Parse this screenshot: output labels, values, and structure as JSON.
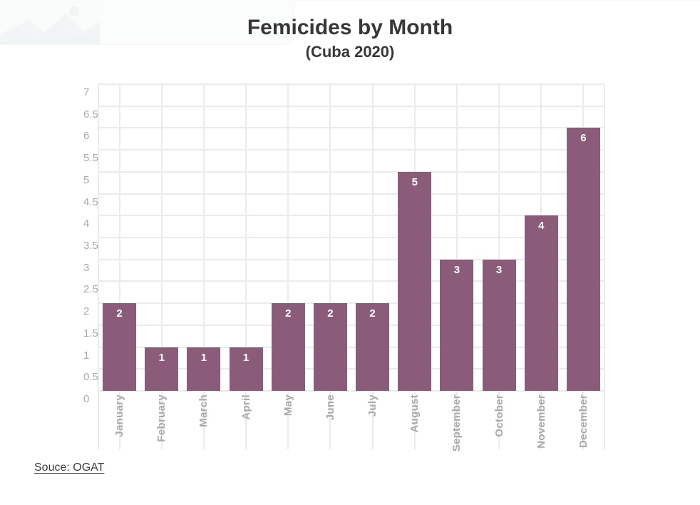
{
  "page": {
    "title": "Femicides by Month",
    "subtitle": "(Cuba 2020)",
    "source_label": "Souce: OGAT"
  },
  "colors": {
    "bar": "#8B5C79",
    "gridline": "#EBEBEB",
    "axis_label": "#A9A9A9",
    "title_text": "#373737",
    "value_label": "#FFFFFF",
    "source_text": "#3D3D3D",
    "watermark_bg": "#FBFCFC"
  },
  "chart_data": {
    "type": "bar",
    "title": "Femicides by Month",
    "subtitle": "(Cuba 2020)",
    "categories": [
      "January",
      "February",
      "March",
      "April",
      "May",
      "June",
      "July",
      "August",
      "September",
      "October",
      "November",
      "December"
    ],
    "values": [
      2,
      1,
      1,
      1,
      2,
      2,
      2,
      5,
      3,
      3,
      4,
      6
    ],
    "xlabel": "",
    "ylabel": "",
    "ylim": [
      0,
      7
    ],
    "ytick_step": 0.5,
    "yticks": [
      "0",
      "0.5",
      "1",
      "1.5",
      "2",
      "2.5",
      "3",
      "3.5",
      "4",
      "4.5",
      "5",
      "5.5",
      "6",
      "6.5",
      "7"
    ],
    "grid": "both",
    "value_label_position": "inside-top",
    "legend": "none"
  }
}
